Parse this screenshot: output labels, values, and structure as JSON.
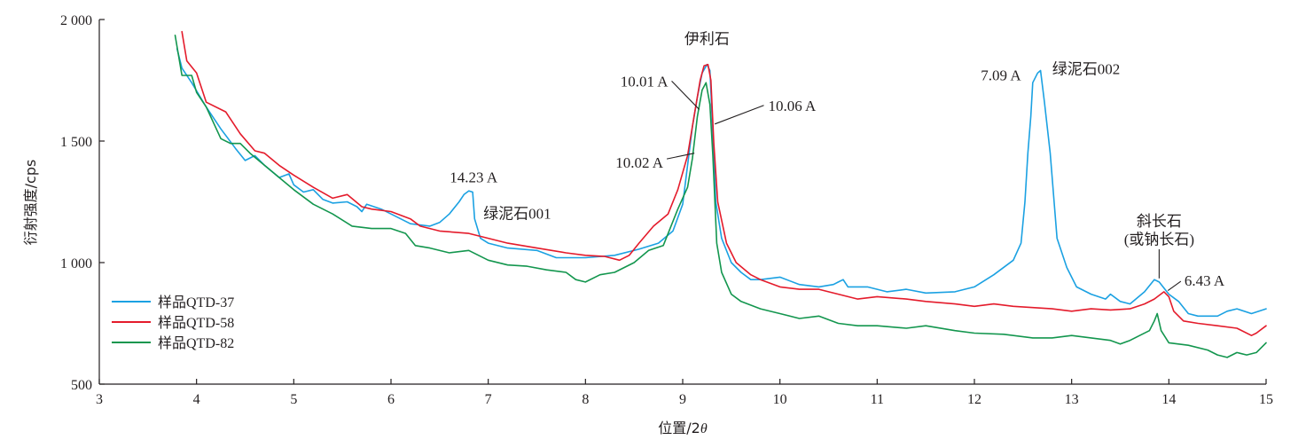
{
  "chart_data": {
    "type": "line",
    "xlabel_main": "位置/2",
    "xlabel_theta": "θ",
    "ylabel": "衍射强度/cps",
    "xlim": [
      3,
      15
    ],
    "ylim": [
      500,
      2000
    ],
    "x_ticks": [
      3,
      4,
      5,
      6,
      7,
      8,
      9,
      10,
      11,
      12,
      13,
      14,
      15
    ],
    "x_tick_labels": [
      "3",
      "4",
      "5",
      "6",
      "7",
      "8",
      "9",
      "10",
      "11",
      "12",
      "13",
      "14",
      "15"
    ],
    "y_ticks": [
      500,
      1000,
      1500,
      2000
    ],
    "y_tick_labels": [
      "500",
      "1 000",
      "1 500",
      "2 000"
    ],
    "legend_position": "bottom-left",
    "series": [
      {
        "name": "样品QTD-37",
        "color": "#1ba1e2",
        "points": [
          [
            3.8,
            1880
          ],
          [
            3.85,
            1800
          ],
          [
            3.95,
            1740
          ],
          [
            4.1,
            1640
          ],
          [
            4.25,
            1550
          ],
          [
            4.4,
            1470
          ],
          [
            4.5,
            1420
          ],
          [
            4.6,
            1440
          ],
          [
            4.7,
            1400
          ],
          [
            4.85,
            1350
          ],
          [
            4.95,
            1365
          ],
          [
            5.0,
            1320
          ],
          [
            5.1,
            1290
          ],
          [
            5.2,
            1300
          ],
          [
            5.3,
            1260
          ],
          [
            5.4,
            1245
          ],
          [
            5.55,
            1250
          ],
          [
            5.65,
            1230
          ],
          [
            5.7,
            1210
          ],
          [
            5.75,
            1240
          ],
          [
            5.9,
            1220
          ],
          [
            6.0,
            1200
          ],
          [
            6.2,
            1160
          ],
          [
            6.4,
            1150
          ],
          [
            6.5,
            1165
          ],
          [
            6.6,
            1200
          ],
          [
            6.7,
            1250
          ],
          [
            6.75,
            1280
          ],
          [
            6.8,
            1295
          ],
          [
            6.84,
            1290
          ],
          [
            6.86,
            1180
          ],
          [
            6.92,
            1100
          ],
          [
            7.0,
            1080
          ],
          [
            7.2,
            1060
          ],
          [
            7.5,
            1050
          ],
          [
            7.7,
            1020
          ],
          [
            8.0,
            1020
          ],
          [
            8.3,
            1030
          ],
          [
            8.55,
            1055
          ],
          [
            8.75,
            1080
          ],
          [
            8.9,
            1130
          ],
          [
            9.0,
            1240
          ],
          [
            9.05,
            1400
          ],
          [
            9.1,
            1560
          ],
          [
            9.15,
            1680
          ],
          [
            9.2,
            1780
          ],
          [
            9.25,
            1815
          ],
          [
            9.28,
            1790
          ],
          [
            9.31,
            1530
          ],
          [
            9.34,
            1250
          ],
          [
            9.4,
            1100
          ],
          [
            9.5,
            1000
          ],
          [
            9.6,
            960
          ],
          [
            9.7,
            930
          ],
          [
            9.8,
            930
          ],
          [
            9.9,
            935
          ],
          [
            10.0,
            940
          ],
          [
            10.2,
            910
          ],
          [
            10.4,
            900
          ],
          [
            10.55,
            910
          ],
          [
            10.6,
            920
          ],
          [
            10.65,
            930
          ],
          [
            10.7,
            900
          ],
          [
            10.9,
            900
          ],
          [
            11.1,
            880
          ],
          [
            11.3,
            890
          ],
          [
            11.5,
            875
          ],
          [
            11.8,
            880
          ],
          [
            12.0,
            900
          ],
          [
            12.2,
            950
          ],
          [
            12.4,
            1010
          ],
          [
            12.48,
            1080
          ],
          [
            12.52,
            1250
          ],
          [
            12.55,
            1450
          ],
          [
            12.58,
            1600
          ],
          [
            12.6,
            1740
          ],
          [
            12.65,
            1780
          ],
          [
            12.68,
            1790
          ],
          [
            12.72,
            1660
          ],
          [
            12.78,
            1450
          ],
          [
            12.85,
            1100
          ],
          [
            12.95,
            980
          ],
          [
            13.05,
            900
          ],
          [
            13.2,
            870
          ],
          [
            13.35,
            850
          ],
          [
            13.4,
            870
          ],
          [
            13.5,
            840
          ],
          [
            13.6,
            830
          ],
          [
            13.75,
            880
          ],
          [
            13.85,
            930
          ],
          [
            13.9,
            920
          ],
          [
            14.0,
            870
          ],
          [
            14.1,
            840
          ],
          [
            14.2,
            790
          ],
          [
            14.3,
            780
          ],
          [
            14.5,
            780
          ],
          [
            14.6,
            800
          ],
          [
            14.7,
            810
          ],
          [
            14.85,
            790
          ],
          [
            15.0,
            810
          ]
        ]
      },
      {
        "name": "样品QTD-58",
        "color": "#e41b2b",
        "points": [
          [
            3.85,
            1950
          ],
          [
            3.9,
            1830
          ],
          [
            4.0,
            1780
          ],
          [
            4.1,
            1660
          ],
          [
            4.3,
            1620
          ],
          [
            4.45,
            1530
          ],
          [
            4.6,
            1460
          ],
          [
            4.7,
            1450
          ],
          [
            4.85,
            1400
          ],
          [
            5.0,
            1360
          ],
          [
            5.2,
            1310
          ],
          [
            5.4,
            1265
          ],
          [
            5.55,
            1280
          ],
          [
            5.7,
            1230
          ],
          [
            5.8,
            1220
          ],
          [
            6.0,
            1210
          ],
          [
            6.2,
            1180
          ],
          [
            6.3,
            1150
          ],
          [
            6.5,
            1130
          ],
          [
            6.8,
            1120
          ],
          [
            7.0,
            1100
          ],
          [
            7.2,
            1080
          ],
          [
            7.5,
            1060
          ],
          [
            7.8,
            1040
          ],
          [
            8.0,
            1030
          ],
          [
            8.2,
            1025
          ],
          [
            8.35,
            1010
          ],
          [
            8.45,
            1030
          ],
          [
            8.55,
            1080
          ],
          [
            8.7,
            1150
          ],
          [
            8.85,
            1200
          ],
          [
            8.95,
            1300
          ],
          [
            9.05,
            1440
          ],
          [
            9.12,
            1610
          ],
          [
            9.18,
            1750
          ],
          [
            9.22,
            1810
          ],
          [
            9.26,
            1815
          ],
          [
            9.29,
            1750
          ],
          [
            9.32,
            1490
          ],
          [
            9.36,
            1250
          ],
          [
            9.45,
            1080
          ],
          [
            9.55,
            1000
          ],
          [
            9.7,
            950
          ],
          [
            9.8,
            930
          ],
          [
            10.0,
            900
          ],
          [
            10.2,
            890
          ],
          [
            10.4,
            890
          ],
          [
            10.6,
            870
          ],
          [
            10.8,
            850
          ],
          [
            11.0,
            860
          ],
          [
            11.3,
            850
          ],
          [
            11.5,
            840
          ],
          [
            11.8,
            830
          ],
          [
            12.0,
            820
          ],
          [
            12.2,
            830
          ],
          [
            12.4,
            820
          ],
          [
            12.6,
            815
          ],
          [
            12.8,
            810
          ],
          [
            13.0,
            800
          ],
          [
            13.2,
            810
          ],
          [
            13.4,
            805
          ],
          [
            13.6,
            810
          ],
          [
            13.75,
            830
          ],
          [
            13.85,
            850
          ],
          [
            13.95,
            880
          ],
          [
            14.0,
            860
          ],
          [
            14.05,
            800
          ],
          [
            14.15,
            760
          ],
          [
            14.3,
            750
          ],
          [
            14.5,
            740
          ],
          [
            14.7,
            730
          ],
          [
            14.85,
            700
          ],
          [
            14.9,
            710
          ],
          [
            15.0,
            740
          ]
        ]
      },
      {
        "name": "样品QTD-82",
        "color": "#13964e",
        "points": [
          [
            3.78,
            1935
          ],
          [
            3.85,
            1770
          ],
          [
            3.95,
            1770
          ],
          [
            4.0,
            1700
          ],
          [
            4.1,
            1640
          ],
          [
            4.25,
            1510
          ],
          [
            4.35,
            1490
          ],
          [
            4.45,
            1490
          ],
          [
            4.55,
            1450
          ],
          [
            4.7,
            1400
          ],
          [
            4.85,
            1350
          ],
          [
            5.0,
            1300
          ],
          [
            5.2,
            1240
          ],
          [
            5.4,
            1200
          ],
          [
            5.6,
            1150
          ],
          [
            5.8,
            1140
          ],
          [
            6.0,
            1140
          ],
          [
            6.15,
            1120
          ],
          [
            6.25,
            1070
          ],
          [
            6.4,
            1060
          ],
          [
            6.6,
            1040
          ],
          [
            6.8,
            1050
          ],
          [
            7.0,
            1010
          ],
          [
            7.2,
            990
          ],
          [
            7.4,
            985
          ],
          [
            7.6,
            970
          ],
          [
            7.8,
            960
          ],
          [
            7.9,
            930
          ],
          [
            8.0,
            920
          ],
          [
            8.15,
            950
          ],
          [
            8.3,
            960
          ],
          [
            8.5,
            1000
          ],
          [
            8.65,
            1050
          ],
          [
            8.8,
            1070
          ],
          [
            8.95,
            1220
          ],
          [
            9.05,
            1310
          ],
          [
            9.1,
            1430
          ],
          [
            9.15,
            1600
          ],
          [
            9.2,
            1710
          ],
          [
            9.24,
            1740
          ],
          [
            9.28,
            1650
          ],
          [
            9.31,
            1440
          ],
          [
            9.35,
            1080
          ],
          [
            9.4,
            960
          ],
          [
            9.5,
            870
          ],
          [
            9.6,
            840
          ],
          [
            9.8,
            810
          ],
          [
            10.0,
            790
          ],
          [
            10.2,
            770
          ],
          [
            10.4,
            780
          ],
          [
            10.6,
            750
          ],
          [
            10.8,
            740
          ],
          [
            11.0,
            740
          ],
          [
            11.3,
            730
          ],
          [
            11.5,
            740
          ],
          [
            11.8,
            720
          ],
          [
            12.0,
            710
          ],
          [
            12.3,
            705
          ],
          [
            12.6,
            690
          ],
          [
            12.8,
            690
          ],
          [
            13.0,
            700
          ],
          [
            13.2,
            690
          ],
          [
            13.4,
            680
          ],
          [
            13.5,
            665
          ],
          [
            13.6,
            680
          ],
          [
            13.7,
            700
          ],
          [
            13.8,
            720
          ],
          [
            13.85,
            760
          ],
          [
            13.88,
            790
          ],
          [
            13.92,
            720
          ],
          [
            14.0,
            670
          ],
          [
            14.2,
            660
          ],
          [
            14.4,
            640
          ],
          [
            14.5,
            620
          ],
          [
            14.6,
            610
          ],
          [
            14.7,
            630
          ],
          [
            14.8,
            620
          ],
          [
            14.9,
            630
          ],
          [
            15.0,
            670
          ]
        ]
      }
    ],
    "annotations": [
      {
        "id": "illite",
        "text": "伊利石",
        "x": 9.25,
        "y": 1900
      },
      {
        "id": "d1001",
        "text": "10.01 A",
        "x": 8.85,
        "y": 1725,
        "leader_to": [
          9.17,
          1630
        ]
      },
      {
        "id": "d1006",
        "text": "10.06 A",
        "x": 9.88,
        "y": 1625,
        "leader_to": [
          9.33,
          1570
        ]
      },
      {
        "id": "d1002",
        "text": "10.02 A",
        "x": 8.8,
        "y": 1390,
        "leader_to": [
          9.12,
          1450
        ]
      },
      {
        "id": "d1423",
        "text": "14.23 A",
        "x": 6.85,
        "y": 1330
      },
      {
        "id": "chlorite001",
        "text": "绿泥石001",
        "x": 6.95,
        "y": 1180
      },
      {
        "id": "d709",
        "text": "7.09 A",
        "x": 12.48,
        "y": 1750
      },
      {
        "id": "chlorite002",
        "text": "绿泥石002",
        "x": 12.8,
        "y": 1775
      },
      {
        "id": "plag1",
        "text": "斜长石",
        "x": 13.9,
        "y": 1150
      },
      {
        "id": "plag2",
        "text": "(或钠长石)",
        "x": 13.9,
        "y": 1075
      },
      {
        "id": "d643",
        "text": "6.43 A",
        "x": 14.16,
        "y": 905,
        "leader_to": [
          13.99,
          885
        ]
      }
    ]
  }
}
